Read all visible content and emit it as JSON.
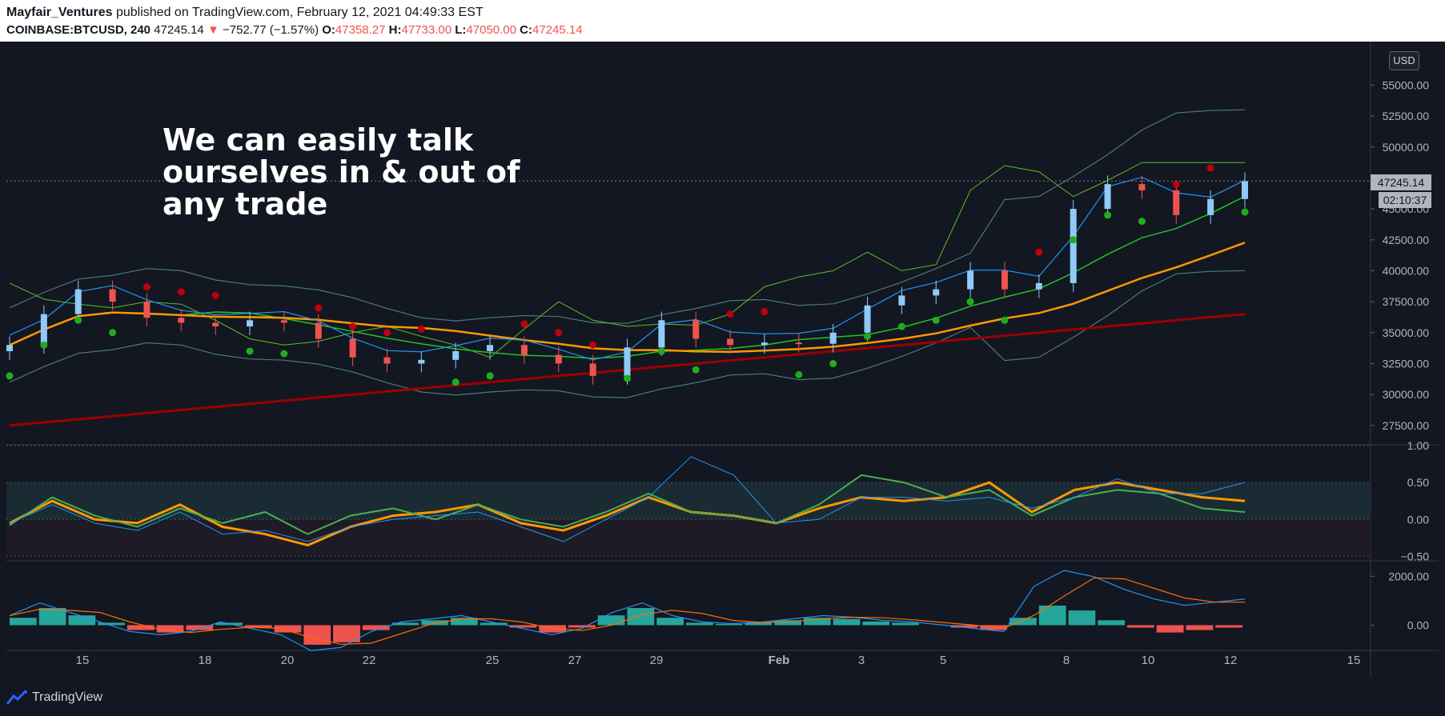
{
  "header": {
    "publisher": "Mayfair_Ventures",
    "published_text": "published on TradingView.com, February 12, 2021 04:49:33 EST",
    "symbol": "COINBASE:BTCUSD, 240",
    "last": "47245.14",
    "change": "−752.77 (−1.57%)",
    "open_label": "O:",
    "open": "47358.27",
    "high_label": "H:",
    "high": "47733.00",
    "low_label": "L:",
    "low": "47050.00",
    "close_label": "C:",
    "close": "47245.14"
  },
  "annotation": "We can easily talk\nourselves in & out of\nany trade",
  "currency_badge": "USD",
  "last_price_tag": "47245.14",
  "countdown_tag": "02:10:37",
  "brand": "TradingView",
  "colors": {
    "background": "#131722",
    "candle_up": "#90caf9",
    "candle_down": "#ef5350",
    "psar_up": "#1fad1f",
    "psar_down": "#c0000b",
    "ma_orange": "#ff9800",
    "ma_red": "#9c0000",
    "bollinger": "#4a7a7a",
    "ichimoku_lead": "#5cbf2a"
  },
  "chart_data": [
    {
      "type": "line",
      "pane": "price",
      "ylim": [
        26000,
        58000
      ],
      "yticks": [
        "55000.00",
        "52500.00",
        "50000.00",
        "47500.00",
        "45000.00",
        "42500.00",
        "40000.00",
        "37500.00",
        "35000.00",
        "32500.00",
        "30000.00",
        "27500.00"
      ],
      "xticks": [
        "15",
        "18",
        "20",
        "22",
        "25",
        "27",
        "29",
        "Feb",
        "3",
        "5",
        "8",
        "10",
        "12",
        "15"
      ],
      "series": [
        {
          "values": [
            34000,
            36500,
            38500,
            37500,
            36200,
            35800,
            35500,
            36000,
            35800,
            34500,
            33000,
            32500,
            32800,
            33500,
            34000,
            33200,
            32500,
            31500,
            33800,
            36000,
            34500,
            34000,
            34200,
            34100,
            35000,
            37200,
            38000,
            38500,
            40000,
            38500,
            39000,
            45000,
            47000,
            46500,
            44500,
            45800,
            47245
          ]
        }
      ]
    },
    {
      "type": "line",
      "pane": "oscillator",
      "ylim": [
        -0.55,
        1.0
      ],
      "yticks": [
        "1.00",
        "0.50",
        "0.00",
        "−0.50"
      ],
      "series": [
        {
          "values": [
            -0.05,
            0.25,
            0.0,
            -0.05,
            0.2,
            -0.1,
            -0.2,
            -0.35,
            -0.1,
            0.05,
            0.1,
            0.2,
            -0.05,
            -0.15,
            0.05,
            0.3,
            0.1,
            0.05,
            -0.05,
            0.15,
            0.3,
            0.25,
            0.3,
            0.5,
            0.1,
            0.4,
            0.5,
            0.4,
            0.3,
            0.25
          ]
        },
        {
          "values": [
            -0.08,
            0.3,
            0.05,
            -0.1,
            0.15,
            -0.05,
            0.1,
            -0.2,
            0.05,
            0.15,
            0.0,
            0.2,
            0.0,
            -0.1,
            0.1,
            0.35,
            0.1,
            0.05,
            -0.05,
            0.2,
            0.6,
            0.5,
            0.3,
            0.4,
            0.05,
            0.3,
            0.4,
            0.35,
            0.15,
            0.1
          ]
        },
        {
          "values": [
            -0.05,
            0.2,
            -0.05,
            -0.15,
            0.1,
            -0.2,
            -0.15,
            -0.3,
            -0.1,
            0.0,
            0.05,
            0.1,
            -0.1,
            -0.3,
            0.0,
            0.3,
            0.85,
            0.6,
            -0.05,
            0.0,
            0.3,
            0.3,
            0.25,
            0.3,
            0.15,
            0.3,
            0.55,
            0.35,
            0.35,
            0.5
          ]
        }
      ]
    },
    {
      "type": "bar",
      "pane": "macd",
      "ylim": [
        -1000,
        2600
      ],
      "yticks": [
        "2000.00",
        "0.00"
      ],
      "series": [
        {
          "values": [
            300,
            700,
            400,
            100,
            -200,
            -300,
            -200,
            100,
            -100,
            -300,
            -800,
            -700,
            -200,
            100,
            200,
            300,
            100,
            -100,
            -300,
            -100,
            400,
            700,
            300,
            100,
            50,
            100,
            200,
            300,
            250,
            150,
            100,
            0,
            -100,
            -200,
            300,
            800,
            600,
            200,
            -100,
            -300,
            -200,
            -100
          ]
        }
      ]
    }
  ]
}
